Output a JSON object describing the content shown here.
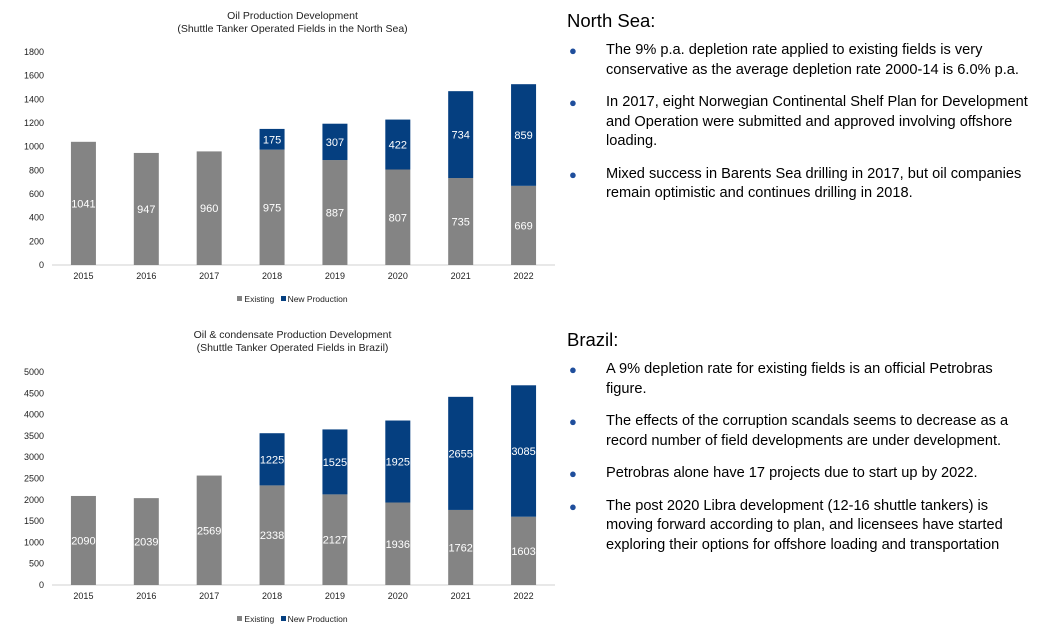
{
  "colors": {
    "existing": "#848484",
    "new_production": "#053f80",
    "axis": "#d0d0d0",
    "bullet": "#1f4e9c"
  },
  "legend": {
    "existing": "Existing",
    "new_production": "New Production"
  },
  "chart_data": [
    {
      "type": "bar",
      "stacked": true,
      "title": "Oil Production Development",
      "subtitle": "(Shuttle Tanker Operated Fields in the North Sea)",
      "categories": [
        "2015",
        "2016",
        "2017",
        "2018",
        "2019",
        "2020",
        "2021",
        "2022"
      ],
      "series": [
        {
          "name": "Existing",
          "values": [
            1041,
            947,
            960,
            975,
            887,
            807,
            735,
            669
          ]
        },
        {
          "name": "New Production",
          "values": [
            null,
            null,
            null,
            175,
            307,
            422,
            734,
            859
          ]
        }
      ],
      "ylim": [
        0,
        1800
      ],
      "yticks": [
        0,
        200,
        400,
        600,
        800,
        1000,
        1200,
        1400,
        1600,
        1800
      ],
      "legend_position": "bottom",
      "grid": false
    },
    {
      "type": "bar",
      "stacked": true,
      "title": "Oil & condensate Production Development",
      "subtitle": "(Shuttle Tanker Operated Fields in Brazil)",
      "categories": [
        "2015",
        "2016",
        "2017",
        "2018",
        "2019",
        "2020",
        "2021",
        "2022"
      ],
      "series": [
        {
          "name": "Existing",
          "values": [
            2090,
            2039,
            2569,
            2338,
            2127,
            1936,
            1762,
            1603
          ]
        },
        {
          "name": "New Production",
          "values": [
            null,
            null,
            null,
            1225,
            1525,
            1925,
            2655,
            3085
          ]
        }
      ],
      "ylim": [
        0,
        5000
      ],
      "yticks": [
        0,
        500,
        1000,
        1500,
        2000,
        2500,
        3000,
        3500,
        4000,
        4500,
        5000
      ],
      "legend_position": "bottom",
      "grid": false
    }
  ],
  "panels": [
    {
      "heading": "North Sea:",
      "bullets": [
        "The 9% p.a. depletion rate applied to existing fields is very conservative as the average depletion rate 2000-14 is 6.0% p.a.",
        "In 2017, eight Norwegian Continental Shelf Plan for Development and Operation were submitted and approved involving offshore loading.",
        "Mixed success in Barents Sea drilling in 2017, but oil companies remain optimistic and continues drilling in 2018."
      ]
    },
    {
      "heading": "Brazil:",
      "bullets": [
        "A 9% depletion rate for existing fields is an official Petrobras figure.",
        "The effects of the corruption scandals seems to decrease as a record number of field developments are under development.",
        "Petrobras alone have 17 projects due to start up by 2022.",
        "The post 2020 Libra development (12-16 shuttle tankers) is moving forward according to plan, and licensees have started exploring their options for offshore loading and transportation"
      ]
    }
  ]
}
